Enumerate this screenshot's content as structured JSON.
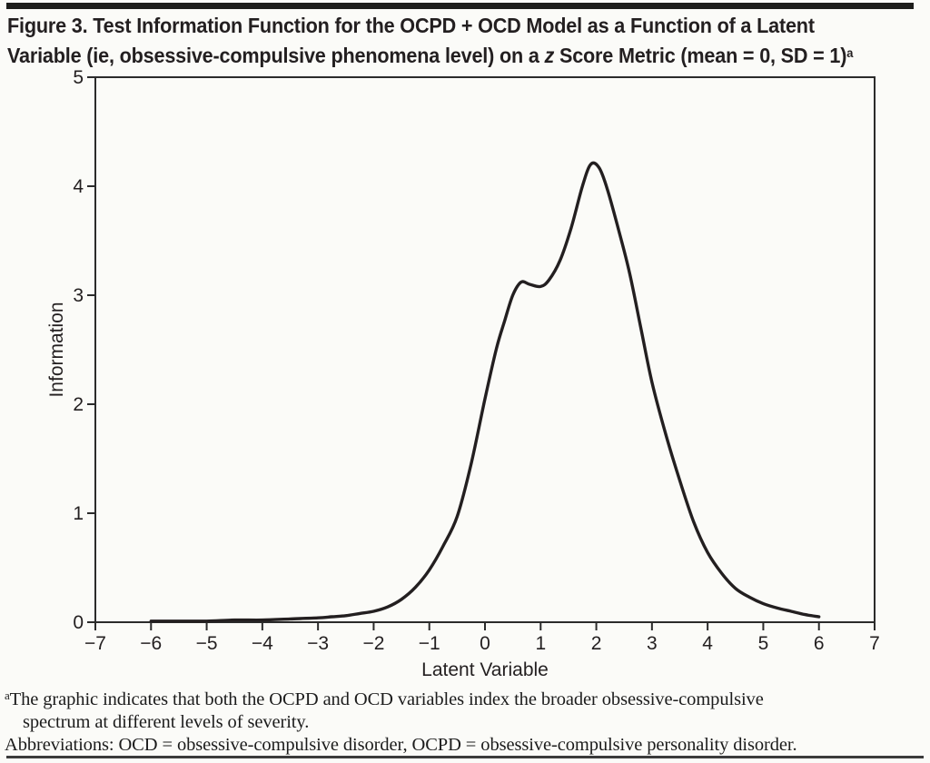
{
  "page": {
    "background": "#fbfbf8",
    "top_bar_color": "#1d1d1b",
    "bottom_rule_color": "#3b3b3b",
    "text_color": "#231f20"
  },
  "figure": {
    "title": {
      "line1": "Figure 3. Test Information Function for the OCPD + OCD Model as a Function of a Latent",
      "line2_pre_italic": "Variable (ie, obsessive-compulsive phenomena level) on a ",
      "line2_italic": "z",
      "line2_post_italic": " Score Metric (mean = 0, SD = 1)",
      "superscript": "a"
    },
    "footnotes": {
      "note_marker": "a",
      "note_line1": "The graphic indicates that both the OCPD and OCD variables index the broader obsessive-compulsive",
      "note_line2": "spectrum at different levels of severity.",
      "abbreviations": "Abbreviations: OCD = obsessive-compulsive disorder, OCPD = obsessive-compulsive personality disorder."
    }
  },
  "chart_data": {
    "type": "line",
    "title": "Test Information Function for the OCPD + OCD Model",
    "xlabel": "Latent Variable",
    "ylabel": "Information",
    "xlim": [
      -7,
      7
    ],
    "ylim": [
      0,
      5
    ],
    "x_ticks": [
      -7,
      -6,
      -5,
      -4,
      -3,
      -2,
      -1,
      0,
      1,
      2,
      3,
      4,
      5,
      6,
      7
    ],
    "y_ticks": [
      0,
      1,
      2,
      3,
      4,
      5
    ],
    "grid": false,
    "legend": "none",
    "line_color": "#231f20",
    "series": [
      {
        "name": "Test Information Function",
        "points": [
          [
            -6.0,
            0.01
          ],
          [
            -5.5,
            0.01
          ],
          [
            -5.0,
            0.01
          ],
          [
            -4.5,
            0.02
          ],
          [
            -4.0,
            0.02
          ],
          [
            -3.5,
            0.03
          ],
          [
            -3.0,
            0.04
          ],
          [
            -2.75,
            0.05
          ],
          [
            -2.5,
            0.06
          ],
          [
            -2.25,
            0.08
          ],
          [
            -2.0,
            0.1
          ],
          [
            -1.75,
            0.14
          ],
          [
            -1.5,
            0.21
          ],
          [
            -1.25,
            0.32
          ],
          [
            -1.0,
            0.48
          ],
          [
            -0.75,
            0.7
          ],
          [
            -0.5,
            0.97
          ],
          [
            -0.25,
            1.45
          ],
          [
            0.0,
            2.05
          ],
          [
            0.2,
            2.5
          ],
          [
            0.35,
            2.76
          ],
          [
            0.5,
            3.0
          ],
          [
            0.65,
            3.12
          ],
          [
            0.8,
            3.1
          ],
          [
            1.0,
            3.08
          ],
          [
            1.15,
            3.14
          ],
          [
            1.35,
            3.32
          ],
          [
            1.55,
            3.62
          ],
          [
            1.75,
            4.0
          ],
          [
            1.9,
            4.2
          ],
          [
            2.05,
            4.17
          ],
          [
            2.2,
            3.97
          ],
          [
            2.4,
            3.6
          ],
          [
            2.6,
            3.2
          ],
          [
            2.8,
            2.7
          ],
          [
            3.0,
            2.2
          ],
          [
            3.25,
            1.72
          ],
          [
            3.5,
            1.3
          ],
          [
            3.75,
            0.92
          ],
          [
            4.0,
            0.64
          ],
          [
            4.25,
            0.45
          ],
          [
            4.5,
            0.31
          ],
          [
            4.75,
            0.23
          ],
          [
            5.0,
            0.17
          ],
          [
            5.25,
            0.13
          ],
          [
            5.5,
            0.1
          ],
          [
            5.75,
            0.07
          ],
          [
            6.0,
            0.05
          ]
        ]
      }
    ]
  }
}
